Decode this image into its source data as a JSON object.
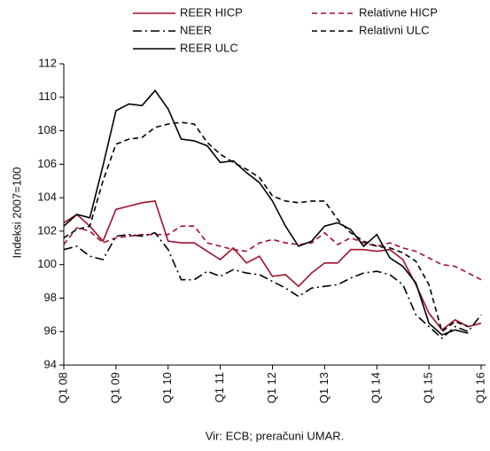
{
  "chart_data": {
    "type": "line",
    "y_label": "Indeksi 2007=100",
    "source": "Vir: ECB; preračuni UMAR.",
    "categories": [
      "Q1 08",
      null,
      null,
      null,
      "Q1 09",
      null,
      null,
      null,
      "Q1 10",
      null,
      null,
      null,
      "Q1 11",
      null,
      null,
      null,
      "Q1 12",
      null,
      null,
      null,
      "Q1 13",
      null,
      null,
      null,
      "Q1 14",
      null,
      null,
      null,
      "Q1 15",
      null,
      null,
      null,
      "Q1 16"
    ],
    "ylim": [
      94,
      112
    ],
    "yticks": [
      94,
      96,
      98,
      100,
      102,
      104,
      106,
      108,
      110,
      112
    ],
    "series": [
      {
        "name": "REER HICP",
        "color": "#a0112b",
        "dash": "solid",
        "values": [
          102.5,
          103.0,
          102.3,
          101.4,
          103.3,
          103.5,
          103.7,
          103.8,
          101.4,
          101.3,
          101.3,
          100.8,
          100.3,
          101.0,
          100.1,
          100.5,
          99.3,
          99.4,
          98.7,
          99.5,
          100.1,
          100.1,
          100.9,
          100.9,
          100.8,
          100.9,
          100.3,
          98.8,
          97.1,
          96.1,
          96.7,
          96.3,
          96.5
        ]
      },
      {
        "name": "Relativne HICP",
        "color": "#a0112b",
        "dash": "dashed",
        "values": [
          101.2,
          102.2,
          102.0,
          101.3,
          101.6,
          101.7,
          101.8,
          101.8,
          101.8,
          102.3,
          102.3,
          101.3,
          101.1,
          100.9,
          100.8,
          101.3,
          101.5,
          101.3,
          101.2,
          101.3,
          101.9,
          101.2,
          101.6,
          101.3,
          101.1,
          101.3,
          101.0,
          100.8,
          100.4,
          100.0,
          99.9,
          99.5,
          99.1
        ]
      },
      {
        "name": "NEER",
        "color": "#000000",
        "dash": "dashdot",
        "values": [
          100.9,
          101.1,
          100.5,
          100.3,
          101.7,
          101.8,
          101.7,
          101.9,
          100.9,
          99.1,
          99.1,
          99.6,
          99.3,
          99.7,
          99.5,
          99.4,
          99.0,
          98.6,
          98.1,
          98.6,
          98.7,
          98.8,
          99.2,
          99.5,
          99.6,
          99.4,
          98.8,
          97.0,
          96.3,
          95.6,
          96.3,
          96.0,
          97.0
        ]
      },
      {
        "name": "Relativni ULC",
        "color": "#000000",
        "dash": "dashed",
        "values": [
          101.6,
          102.1,
          102.3,
          105.0,
          107.2,
          107.5,
          107.6,
          108.2,
          108.4,
          108.5,
          108.4,
          107.3,
          106.6,
          106.1,
          105.7,
          105.2,
          104.1,
          103.8,
          103.7,
          103.8,
          103.8,
          102.7,
          101.9,
          101.4,
          101.1,
          101.0,
          100.7,
          100.2,
          98.8,
          96.0,
          96.6,
          96.3,
          null
        ]
      },
      {
        "name": "REER ULC",
        "color": "#000000",
        "dash": "solid",
        "values": [
          102.3,
          103.0,
          102.8,
          105.9,
          109.2,
          109.6,
          109.5,
          110.4,
          109.3,
          107.5,
          107.4,
          107.1,
          106.1,
          106.2,
          105.5,
          104.9,
          103.8,
          102.3,
          101.1,
          101.4,
          102.3,
          102.5,
          102.1,
          101.1,
          101.8,
          100.4,
          99.9,
          98.9,
          96.5,
          95.8,
          96.1,
          95.9,
          null
        ]
      }
    ]
  }
}
